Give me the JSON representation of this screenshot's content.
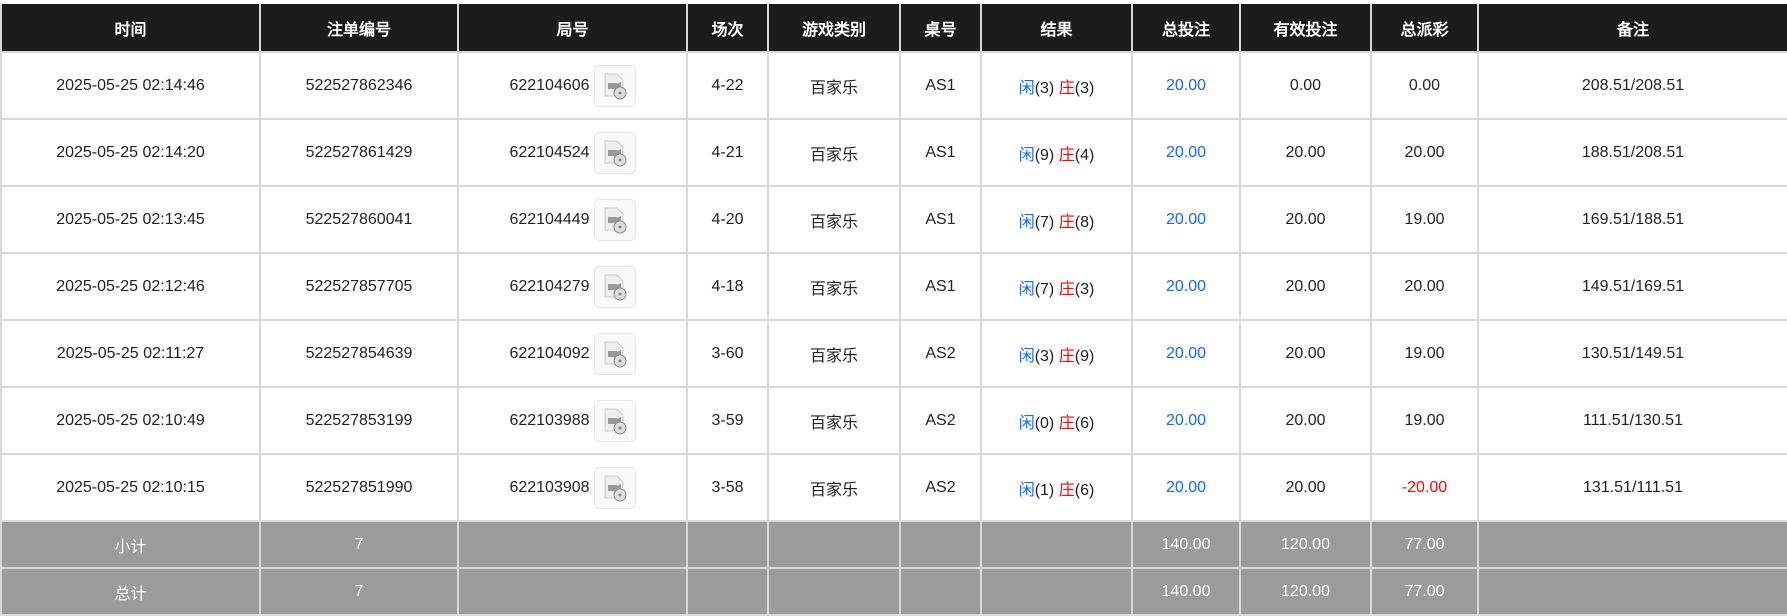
{
  "headers": [
    "时间",
    "注单编号",
    "局号",
    "场次",
    "游戏类别",
    "桌号",
    "结果",
    "总投注",
    "有效投注",
    "总派彩",
    "备注"
  ],
  "colors": {
    "header_bg": "#1c1c1c",
    "summary_bg": "#9b9b9b",
    "player": "#1a66ff",
    "banker": "#ff0000",
    "bet": "#1a66ff",
    "negative": "#ff0000"
  },
  "rows": [
    {
      "time": "2025-05-25 02:14:46",
      "bet_id": "522527862346",
      "round": "622104606",
      "shoe": "4-22",
      "game": "百家乐",
      "table": "AS1",
      "player_label": "闲",
      "player_val": "(3)",
      "banker_label": "庄",
      "banker_val": "(3)",
      "total_bet": "20.00",
      "valid_bet": "0.00",
      "payout": "0.00",
      "payout_negative": false,
      "remark": "208.51/208.51"
    },
    {
      "time": "2025-05-25 02:14:20",
      "bet_id": "522527861429",
      "round": "622104524",
      "shoe": "4-21",
      "game": "百家乐",
      "table": "AS1",
      "player_label": "闲",
      "player_val": "(9)",
      "banker_label": "庄",
      "banker_val": "(4)",
      "total_bet": "20.00",
      "valid_bet": "20.00",
      "payout": "20.00",
      "payout_negative": false,
      "remark": "188.51/208.51"
    },
    {
      "time": "2025-05-25 02:13:45",
      "bet_id": "522527860041",
      "round": "622104449",
      "shoe": "4-20",
      "game": "百家乐",
      "table": "AS1",
      "player_label": "闲",
      "player_val": "(7)",
      "banker_label": "庄",
      "banker_val": "(8)",
      "total_bet": "20.00",
      "valid_bet": "20.00",
      "payout": "19.00",
      "payout_negative": false,
      "remark": "169.51/188.51"
    },
    {
      "time": "2025-05-25 02:12:46",
      "bet_id": "522527857705",
      "round": "622104279",
      "shoe": "4-18",
      "game": "百家乐",
      "table": "AS1",
      "player_label": "闲",
      "player_val": "(7)",
      "banker_label": "庄",
      "banker_val": "(3)",
      "total_bet": "20.00",
      "valid_bet": "20.00",
      "payout": "20.00",
      "payout_negative": false,
      "remark": "149.51/169.51"
    },
    {
      "time": "2025-05-25 02:11:27",
      "bet_id": "522527854639",
      "round": "622104092",
      "shoe": "3-60",
      "game": "百家乐",
      "table": "AS2",
      "player_label": "闲",
      "player_val": "(3)",
      "banker_label": "庄",
      "banker_val": "(9)",
      "total_bet": "20.00",
      "valid_bet": "20.00",
      "payout": "19.00",
      "payout_negative": false,
      "remark": "130.51/149.51"
    },
    {
      "time": "2025-05-25 02:10:49",
      "bet_id": "522527853199",
      "round": "622103988",
      "shoe": "3-59",
      "game": "百家乐",
      "table": "AS2",
      "player_label": "闲",
      "player_val": "(0)",
      "banker_label": "庄",
      "banker_val": "(6)",
      "total_bet": "20.00",
      "valid_bet": "20.00",
      "payout": "19.00",
      "payout_negative": false,
      "remark": "111.51/130.51"
    },
    {
      "time": "2025-05-25 02:10:15",
      "bet_id": "522527851990",
      "round": "622103908",
      "shoe": "3-58",
      "game": "百家乐",
      "table": "AS2",
      "player_label": "闲",
      "player_val": "(1)",
      "banker_label": "庄",
      "banker_val": "(6)",
      "total_bet": "20.00",
      "valid_bet": "20.00",
      "payout": "-20.00",
      "payout_negative": true,
      "remark": "131.51/111.51"
    }
  ],
  "subtotal": {
    "label": "小计",
    "count": "7",
    "total_bet": "140.00",
    "valid_bet": "120.00",
    "payout": "77.00"
  },
  "total": {
    "label": "总计",
    "count": "7",
    "total_bet": "140.00",
    "valid_bet": "120.00",
    "payout": "77.00"
  }
}
